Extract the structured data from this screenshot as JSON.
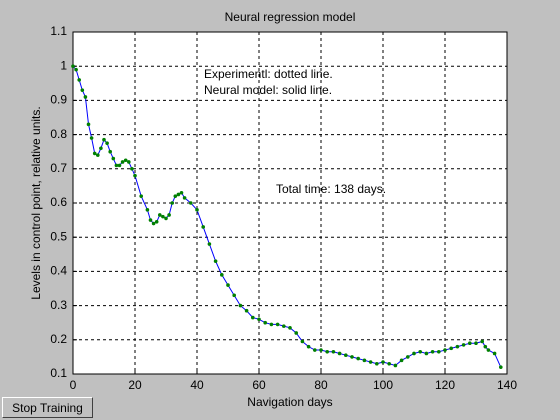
{
  "chart_data": {
    "type": "line",
    "title": "Neural regression model",
    "xlabel": "Navigation days",
    "ylabel": "Levels in control point,  relative units.",
    "annotations": [
      "Experimentl: dotted line.",
      "Neural model: solid line.",
      "Total time: 138 days."
    ],
    "x": [
      0,
      1,
      2,
      3,
      4,
      5,
      6,
      7,
      8,
      9,
      10,
      11,
      12,
      13,
      14,
      15,
      16,
      17,
      18,
      19,
      20,
      22,
      24,
      25,
      26,
      27,
      28,
      29,
      30,
      31,
      32,
      33,
      34,
      35,
      36,
      38,
      40,
      42,
      44,
      46,
      48,
      50,
      52,
      54,
      56,
      58,
      60,
      62,
      64,
      66,
      68,
      70,
      72,
      74,
      76,
      78,
      80,
      82,
      84,
      86,
      88,
      90,
      92,
      94,
      96,
      98,
      100,
      102,
      104,
      106,
      108,
      110,
      112,
      114,
      116,
      118,
      120,
      122,
      124,
      126,
      128,
      130,
      132,
      133,
      134,
      136,
      138
    ],
    "series": [
      {
        "name": "Experimentl",
        "color": "#008000",
        "style": "dotted",
        "values": [
          1.0,
          0.99,
          0.96,
          0.93,
          0.91,
          0.83,
          0.79,
          0.745,
          0.74,
          0.76,
          0.785,
          0.775,
          0.75,
          0.73,
          0.71,
          0.71,
          0.72,
          0.725,
          0.72,
          0.7,
          0.68,
          0.62,
          0.58,
          0.55,
          0.54,
          0.545,
          0.565,
          0.56,
          0.555,
          0.565,
          0.6,
          0.62,
          0.625,
          0.63,
          0.615,
          0.6,
          0.58,
          0.53,
          0.48,
          0.43,
          0.39,
          0.36,
          0.33,
          0.3,
          0.285,
          0.265,
          0.26,
          0.25,
          0.245,
          0.245,
          0.24,
          0.235,
          0.22,
          0.195,
          0.18,
          0.17,
          0.17,
          0.165,
          0.165,
          0.16,
          0.155,
          0.15,
          0.145,
          0.14,
          0.135,
          0.13,
          0.135,
          0.13,
          0.125,
          0.14,
          0.15,
          0.16,
          0.165,
          0.16,
          0.165,
          0.165,
          0.17,
          0.175,
          0.18,
          0.185,
          0.19,
          0.19,
          0.195,
          0.18,
          0.17,
          0.16,
          0.12
        ]
      },
      {
        "name": "Neural model",
        "color": "#0000ff",
        "style": "solid",
        "values": [
          1.0,
          0.99,
          0.96,
          0.93,
          0.91,
          0.83,
          0.79,
          0.745,
          0.74,
          0.76,
          0.785,
          0.775,
          0.75,
          0.73,
          0.71,
          0.71,
          0.72,
          0.725,
          0.72,
          0.7,
          0.68,
          0.62,
          0.58,
          0.55,
          0.54,
          0.545,
          0.565,
          0.56,
          0.555,
          0.565,
          0.6,
          0.62,
          0.625,
          0.63,
          0.615,
          0.6,
          0.58,
          0.53,
          0.48,
          0.43,
          0.39,
          0.36,
          0.33,
          0.3,
          0.285,
          0.265,
          0.26,
          0.25,
          0.245,
          0.245,
          0.24,
          0.235,
          0.22,
          0.195,
          0.18,
          0.17,
          0.17,
          0.165,
          0.165,
          0.16,
          0.155,
          0.15,
          0.145,
          0.14,
          0.135,
          0.13,
          0.135,
          0.13,
          0.125,
          0.14,
          0.15,
          0.16,
          0.165,
          0.16,
          0.165,
          0.165,
          0.17,
          0.175,
          0.18,
          0.185,
          0.19,
          0.19,
          0.195,
          0.18,
          0.17,
          0.16,
          0.12
        ]
      }
    ],
    "xlim": [
      0,
      140
    ],
    "xticks": [
      0,
      20,
      40,
      60,
      80,
      100,
      120,
      140
    ],
    "ylim": [
      0.1,
      1.1
    ],
    "yticks": [
      0.1,
      0.2,
      0.3,
      0.4,
      0.5,
      0.6,
      0.7,
      0.8,
      0.9,
      1,
      1.1
    ],
    "grid": true
  },
  "button": {
    "label": "Stop Training"
  }
}
